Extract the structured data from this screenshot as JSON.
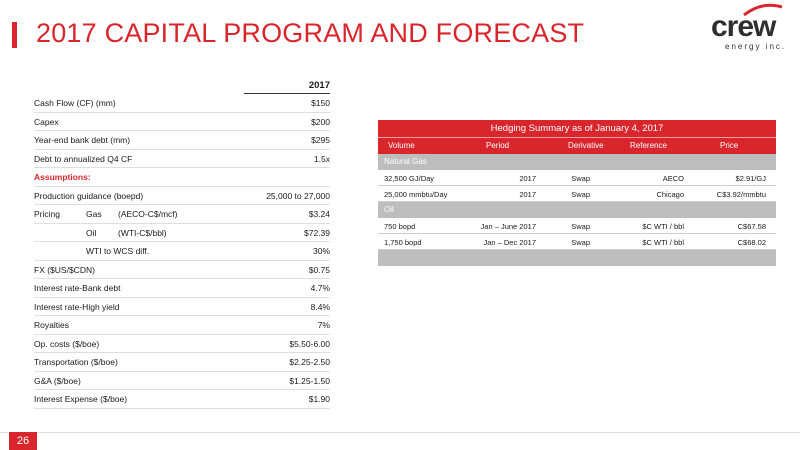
{
  "title": "2017 CAPITAL PROGRAM AND FORECAST",
  "logo": {
    "name": "crew",
    "tagline": "energy inc."
  },
  "page_number": "26",
  "assumptions": {
    "year_header": "2017",
    "rows": [
      {
        "label": "Cash Flow (CF) (mm)",
        "value": "$150"
      },
      {
        "label": "Capex",
        "value": "$200"
      },
      {
        "label": "Year-end bank debt (mm)",
        "value": "$295"
      },
      {
        "label": "Debt to annualized Q4 CF",
        "value": "1.5x"
      }
    ],
    "section_label": "Assumptions:",
    "production": {
      "label": "Production guidance (boepd)",
      "value": "25,000 to 27,000"
    },
    "pricing": {
      "label": "Pricing",
      "gas": {
        "name": "Gas",
        "unit": "(AECO-C$/mcf)",
        "value": "$3.24"
      },
      "oil": {
        "name": "Oil",
        "unit": "(WTI-C$/bbl)",
        "value": "$72.39"
      },
      "wti": {
        "label": "WTI to WCS diff.",
        "value": "30%"
      }
    },
    "rows2": [
      {
        "label": "FX ($US/$CDN)",
        "value": "$0.75"
      },
      {
        "label": "Interest rate-Bank debt",
        "value": "4.7%"
      },
      {
        "label": "Interest rate-High yield",
        "value": "8.4%"
      },
      {
        "label": "Royalties",
        "value": "7%"
      },
      {
        "label": "Op. costs ($/boe)",
        "value": "$5.50-6.00"
      },
      {
        "label": "Transportation ($/boe)",
        "value": "$2.25-2.50"
      },
      {
        "label": "G&A ($/boe)",
        "value": "$1.25-1.50"
      },
      {
        "label": "Interest Expense  ($/boe)",
        "value": "$1.90"
      }
    ]
  },
  "hedging": {
    "title": "Hedging Summary as of January 4, 2017",
    "columns": [
      "Volume",
      "Period",
      "Derivative",
      "Reference",
      "Price"
    ],
    "groups": [
      {
        "name": "Natural Gas",
        "rows": [
          [
            "32,500 GJ/Day",
            "2017",
            "Swap",
            "AECO",
            "$2.91/GJ"
          ],
          [
            "25,000 mmbtu/Day",
            "2017",
            "Swap",
            "Chicago",
            "C$3.92/mmbtu"
          ]
        ]
      },
      {
        "name": "Oil",
        "rows": [
          [
            "750 bopd",
            "Jan – June 2017",
            "Swap",
            "$C WTI / bbl",
            "C$67.58"
          ],
          [
            "1,750 bopd",
            "Jan – Dec 2017",
            "Swap",
            "$C WTI / bbl",
            "C$68.02"
          ]
        ]
      }
    ]
  },
  "colors": {
    "accent": "#d9262c",
    "band": "#bdbdbd"
  }
}
